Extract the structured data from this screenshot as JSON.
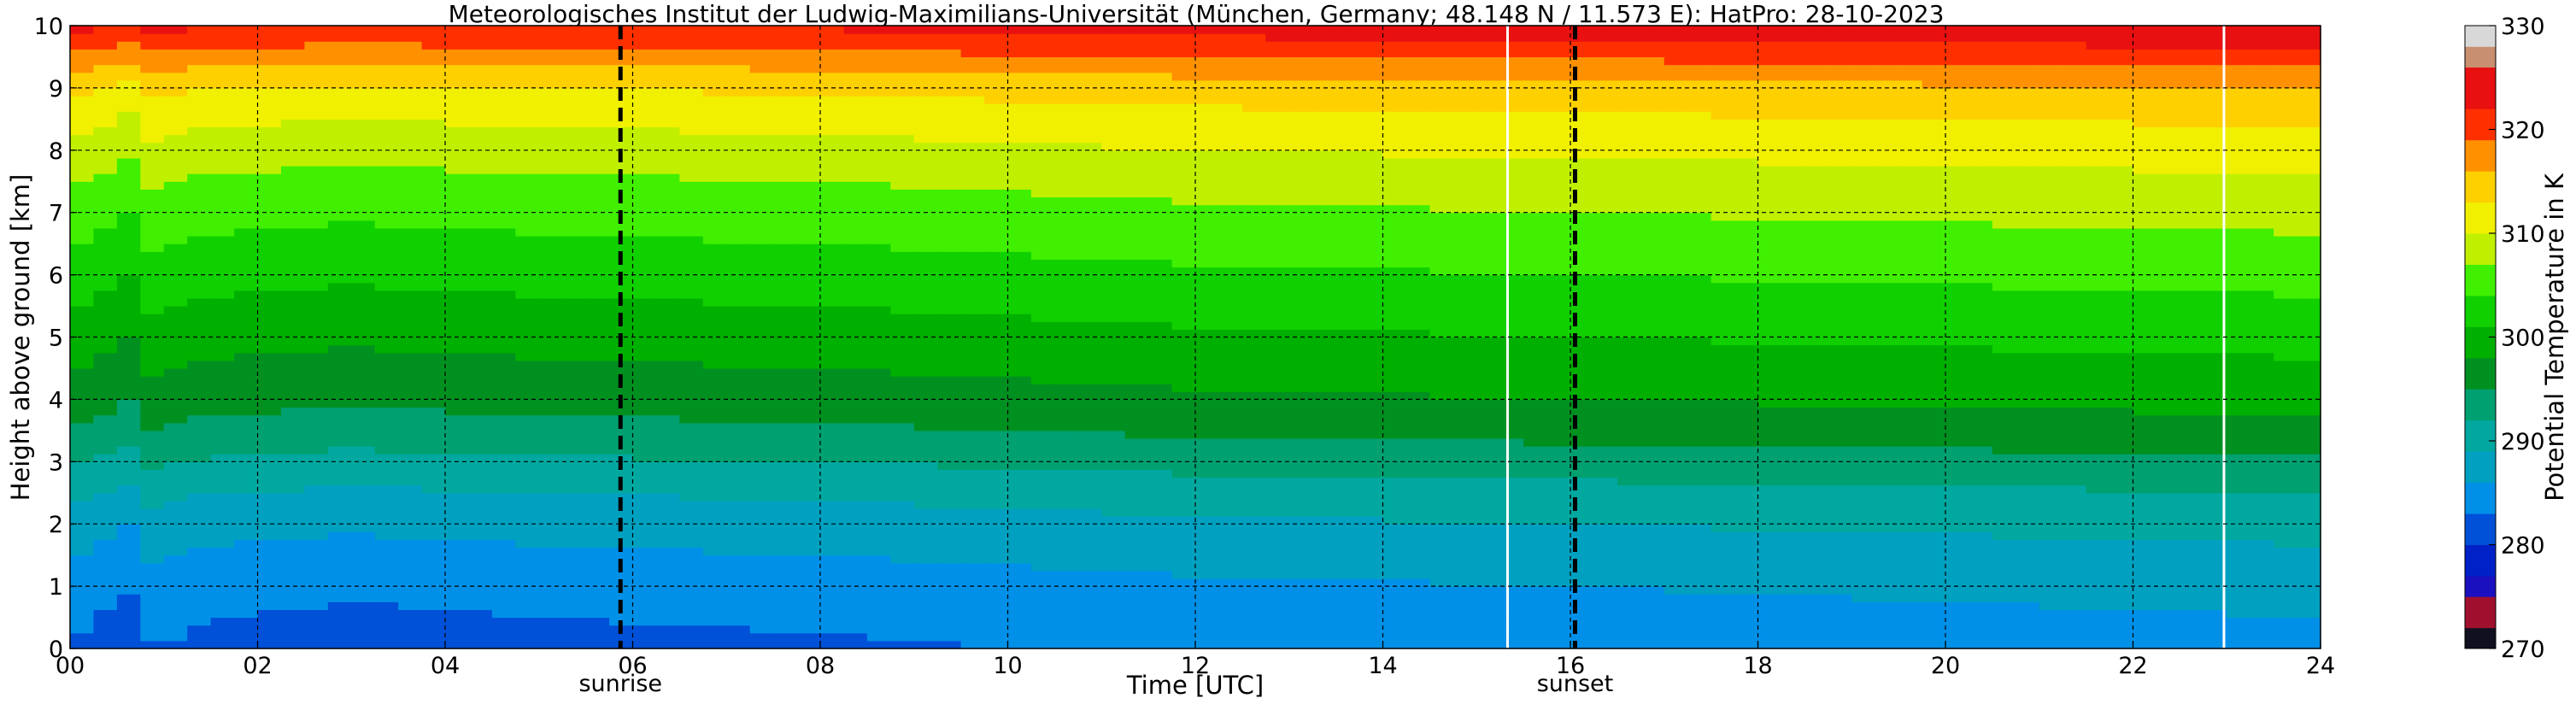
{
  "chart_data": {
    "type": "heatmap",
    "title": "Meteorologisches Institut der Ludwig-Maximilians-Universität (München, Germany; 48.148 N / 11.573 E):    HatPro: 28-10-2023",
    "xlabel": "Time [UTC]",
    "ylabel": "Height above ground [km]",
    "xlim": [
      0,
      24
    ],
    "ylim": [
      0,
      10
    ],
    "x_ticks": [
      0,
      2,
      4,
      6,
      8,
      10,
      12,
      14,
      16,
      18,
      20,
      22,
      24
    ],
    "x_tick_labels": [
      "00",
      "02",
      "04",
      "06",
      "08",
      "10",
      "12",
      "14",
      "16",
      "18",
      "20",
      "22",
      "24"
    ],
    "y_ticks": [
      0,
      1,
      2,
      3,
      4,
      5,
      6,
      7,
      8,
      9,
      10
    ],
    "y_tick_labels": [
      "0",
      "1",
      "2",
      "3",
      "4",
      "5",
      "6",
      "7",
      "8",
      "9",
      "10"
    ],
    "grid": true,
    "events": [
      {
        "label": "sunrise",
        "x": 5.87
      },
      {
        "label": "sunset",
        "x": 16.05
      }
    ],
    "data_gaps_x": [
      15.33,
      22.97
    ],
    "colorbar": {
      "label": "Potential Temperature in K",
      "range": [
        270,
        330
      ],
      "ticks": [
        270,
        280,
        290,
        300,
        310,
        320,
        330
      ],
      "tick_labels": [
        "270",
        "280",
        "290",
        "300",
        "310",
        "320",
        "330"
      ],
      "levels": [
        {
          "from": 270,
          "to": 272,
          "color": "#101020"
        },
        {
          "from": 272,
          "to": 275,
          "color": "#a0102e"
        },
        {
          "from": 275,
          "to": 277,
          "color": "#1a10c0"
        },
        {
          "from": 277,
          "to": 280,
          "color": "#0020c8"
        },
        {
          "from": 280,
          "to": 283,
          "color": "#0050d8"
        },
        {
          "from": 283,
          "to": 286,
          "color": "#0090e8"
        },
        {
          "from": 286,
          "to": 289,
          "color": "#00a0c0"
        },
        {
          "from": 289,
          "to": 292,
          "color": "#00a8a0"
        },
        {
          "from": 292,
          "to": 295,
          "color": "#00a070"
        },
        {
          "from": 295,
          "to": 298,
          "color": "#009020"
        },
        {
          "from": 298,
          "to": 301,
          "color": "#00b000"
        },
        {
          "from": 301,
          "to": 304,
          "color": "#10d000"
        },
        {
          "from": 304,
          "to": 307,
          "color": "#40f000"
        },
        {
          "from": 307,
          "to": 310,
          "color": "#c0f000"
        },
        {
          "from": 310,
          "to": 313,
          "color": "#f0f000"
        },
        {
          "from": 313,
          "to": 316,
          "color": "#ffd000"
        },
        {
          "from": 316,
          "to": 319,
          "color": "#ff9000"
        },
        {
          "from": 319,
          "to": 322,
          "color": "#ff3000"
        },
        {
          "from": 322,
          "to": 326,
          "color": "#e81010"
        },
        {
          "from": 326,
          "to": 328,
          "color": "#c89070"
        },
        {
          "from": 328,
          "to": 330,
          "color": "#d8d8d8"
        }
      ]
    },
    "profile_by_height": [
      {
        "z": 0.0,
        "theta": 283
      },
      {
        "z": 0.5,
        "theta": 284
      },
      {
        "z": 1.0,
        "theta": 285
      },
      {
        "z": 1.5,
        "theta": 286.5
      },
      {
        "z": 2.0,
        "theta": 288
      },
      {
        "z": 2.5,
        "theta": 290
      },
      {
        "z": 3.0,
        "theta": 292.5
      },
      {
        "z": 3.5,
        "theta": 295
      },
      {
        "z": 4.0,
        "theta": 297
      },
      {
        "z": 4.5,
        "theta": 298.5
      },
      {
        "z": 5.0,
        "theta": 300
      },
      {
        "z": 5.5,
        "theta": 301.5
      },
      {
        "z": 6.0,
        "theta": 303
      },
      {
        "z": 6.5,
        "theta": 304.5
      },
      {
        "z": 7.0,
        "theta": 306
      },
      {
        "z": 7.5,
        "theta": 307.5
      },
      {
        "z": 8.0,
        "theta": 309.5
      },
      {
        "z": 8.5,
        "theta": 311.5
      },
      {
        "z": 9.0,
        "theta": 314
      },
      {
        "z": 9.3,
        "theta": 316.5
      },
      {
        "z": 9.65,
        "theta": 320
      },
      {
        "z": 10.0,
        "theta": 323
      }
    ],
    "time_adjustment": [
      {
        "t": 0.0,
        "dtheta": 0
      },
      {
        "t": 0.3,
        "dtheta": -1
      },
      {
        "t": 0.6,
        "dtheta": -2
      },
      {
        "t": 0.9,
        "dtheta": 0
      },
      {
        "t": 1.5,
        "dtheta": -1
      },
      {
        "t": 3.0,
        "dtheta": -1.5
      },
      {
        "t": 5.0,
        "dtheta": -1
      },
      {
        "t": 8.0,
        "dtheta": -0.5
      },
      {
        "t": 12.0,
        "dtheta": 0.5
      },
      {
        "t": 16.0,
        "dtheta": 1
      },
      {
        "t": 20.0,
        "dtheta": 1.5
      },
      {
        "t": 24.0,
        "dtheta": 2
      }
    ]
  }
}
